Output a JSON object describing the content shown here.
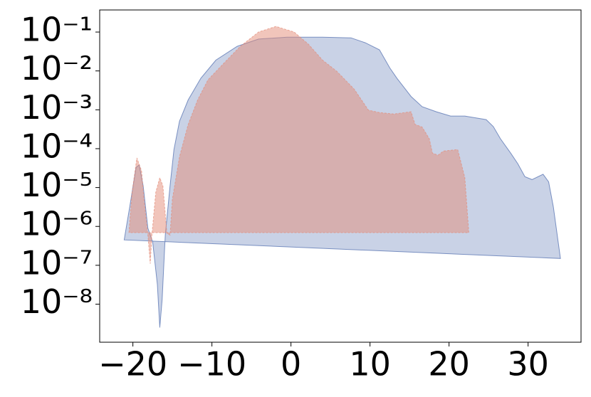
{
  "chart_data": {
    "type": "area",
    "log_y": true,
    "xlim": [
      -24.2,
      36.7
    ],
    "ylim": [
      1.05e-09,
      0.37
    ],
    "xticks": [
      {
        "value": -20,
        "label": "−20"
      },
      {
        "value": -10,
        "label": "−10"
      },
      0,
      10,
      20,
      30
    ],
    "yticks": [
      {
        "value": 1e-08,
        "label": "10⁻⁸"
      },
      {
        "value": 1e-07,
        "label": "10⁻⁷"
      },
      {
        "value": 1e-06,
        "label": "10⁻⁶"
      },
      {
        "value": 1e-05,
        "label": "10⁻⁵"
      },
      {
        "value": 0.0001,
        "label": "10⁻⁴"
      },
      {
        "value": 0.001,
        "label": "10⁻³"
      },
      {
        "value": 0.01,
        "label": "10⁻²"
      },
      {
        "value": 0.1,
        "label": "10⁻¹"
      }
    ],
    "series": [
      {
        "color": "#4c6aad",
        "alpha": 0.3,
        "dashed": false,
        "x": [
          -21.1,
          -20.4,
          -19.6,
          -19.2,
          -18.7,
          -18.1,
          -17.5,
          -16.9,
          -16.6,
          -16.3,
          -15.9,
          -15.3,
          -14.8,
          -14.1,
          -13.0,
          -11.4,
          -9.5,
          -6.8,
          -4.1,
          -0.5,
          4.0,
          7.6,
          9.4,
          11.2,
          12.5,
          13.4,
          15.2,
          16.6,
          18.4,
          20.2,
          22.0,
          24.7,
          25.6,
          26.5,
          27.8,
          28.7,
          29.6,
          30.5,
          31.9,
          32.6,
          33.2,
          34.1
        ],
        "values": [
          4.5e-07,
          3.2e-06,
          3.3e-05,
          3.8e-05,
          1.1e-05,
          9e-07,
          4e-07,
          3.2e-08,
          2.5e-09,
          1.3e-08,
          6e-07,
          1.1e-05,
          9.5e-05,
          0.00051,
          0.0018,
          0.0065,
          0.019,
          0.043,
          0.066,
          0.074,
          0.074,
          0.071,
          0.053,
          0.035,
          0.012,
          0.0065,
          0.0022,
          0.0012,
          0.00089,
          0.00069,
          0.00069,
          0.00056,
          0.00037,
          0.00018,
          7.7e-05,
          4.1e-05,
          1.9e-05,
          1.6e-05,
          2.2e-05,
          1.4e-05,
          3.2e-06,
          1.5e-07
        ]
      },
      {
        "color": "#e48c78",
        "alpha": 0.5,
        "dashed": true,
        "x": [
          -20.5,
          -20.1,
          -19.5,
          -18.9,
          -18.6,
          -18.1,
          -17.8,
          -17.6,
          -17.1,
          -16.6,
          -16.2,
          -15.7,
          -15.3,
          -15.0,
          -14.1,
          -13.0,
          -11.8,
          -10.5,
          -8.6,
          -6.4,
          -4.1,
          -1.9,
          0.4,
          2.2,
          4.0,
          5.8,
          8.0,
          9.8,
          11.2,
          13.0,
          15.2,
          15.7,
          16.6,
          17.5,
          17.9,
          18.6,
          19.3,
          21.1,
          22.0,
          22.5
        ],
        "values": [
          6.9e-07,
          7.6e-06,
          5.8e-05,
          2.7e-05,
          5e-06,
          6e-07,
          1.1e-07,
          6e-07,
          7.6e-06,
          1.8e-05,
          1.1e-05,
          6.6e-07,
          6e-07,
          5e-06,
          6.2e-05,
          0.00042,
          0.0018,
          0.0059,
          0.015,
          0.043,
          0.1,
          0.14,
          0.1,
          0.049,
          0.019,
          0.0098,
          0.0034,
          0.00098,
          0.00085,
          0.00078,
          0.00089,
          0.00042,
          0.00036,
          0.00018,
          7.7e-05,
          6.8e-05,
          8.7e-05,
          9.5e-05,
          1.8e-05,
          6.9e-07
        ]
      }
    ]
  }
}
